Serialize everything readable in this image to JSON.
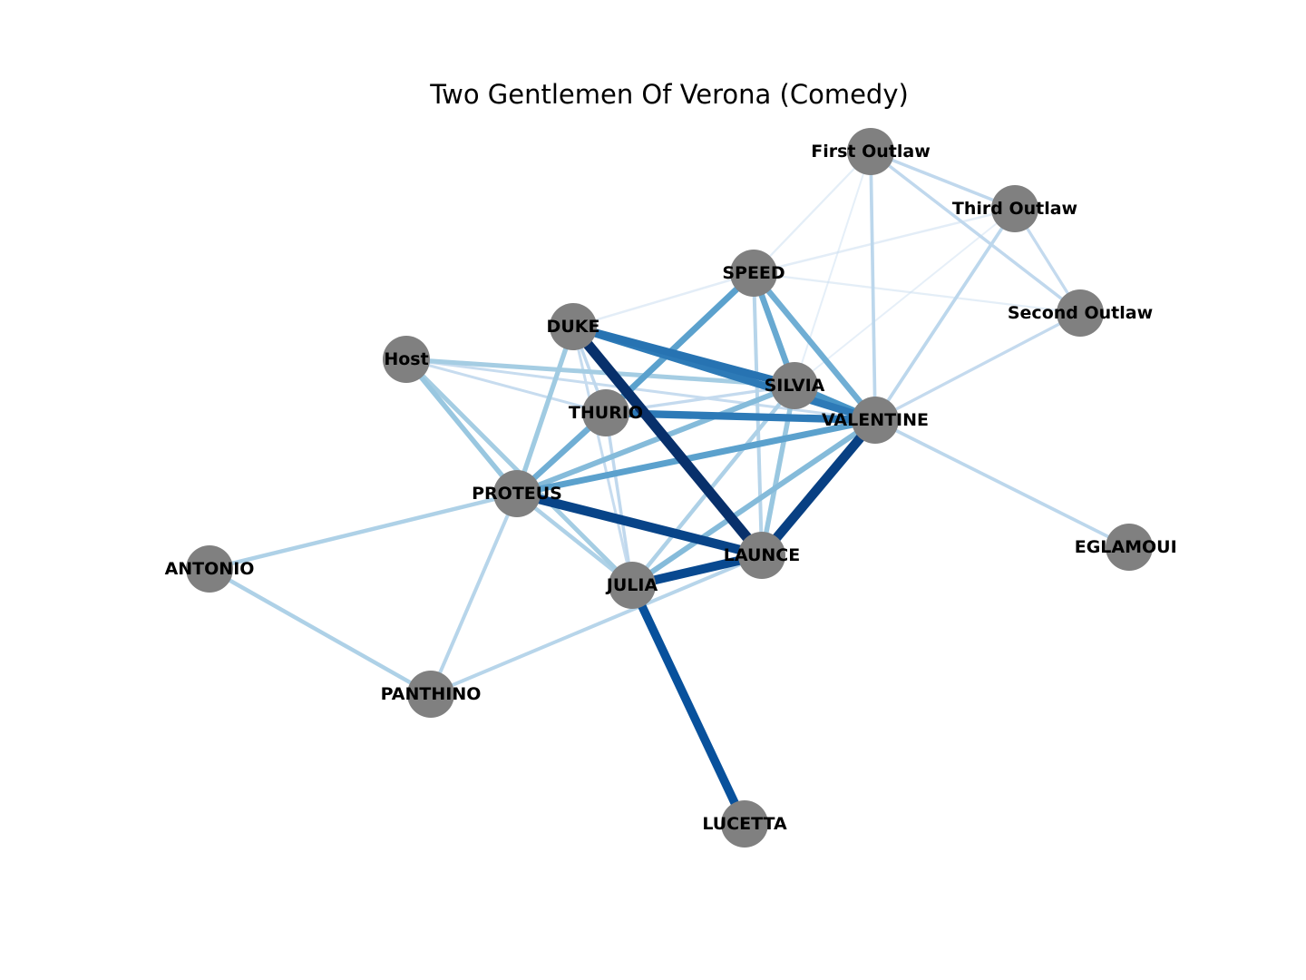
{
  "title": "Two Gentlemen Of Verona (Comedy)",
  "colors": {
    "node": "#808080",
    "background": "#ffffff",
    "edge_colormap": "Blues"
  },
  "nodes": [
    {
      "id": "First Outlaw",
      "label": "First Outlaw"
    },
    {
      "id": "Third Outlaw",
      "label": "Third Outlaw"
    },
    {
      "id": "SPEED",
      "label": "SPEED"
    },
    {
      "id": "Second Outlaw",
      "label": "Second Outlaw"
    },
    {
      "id": "DUKE",
      "label": "DUKE"
    },
    {
      "id": "Host",
      "label": "Host"
    },
    {
      "id": "SILVIA",
      "label": "SILVIA"
    },
    {
      "id": "THURIO",
      "label": "THURIO"
    },
    {
      "id": "VALENTINE",
      "label": "VALENTINE"
    },
    {
      "id": "PROTEUS",
      "label": "PROTEUS"
    },
    {
      "id": "EGLAMOUR",
      "label": "EGLAMOUR"
    },
    {
      "id": "ANTONIO",
      "label": "ANTONIO"
    },
    {
      "id": "LAUNCE",
      "label": "LAUNCE"
    },
    {
      "id": "JULIA",
      "label": "JULIA"
    },
    {
      "id": "PANTHINO",
      "label": "PANTHINO"
    },
    {
      "id": "LUCETTA",
      "label": "LUCETTA"
    }
  ],
  "edges": [
    {
      "source": "First Outlaw",
      "target": "Third Outlaw",
      "weight": 0.2
    },
    {
      "source": "First Outlaw",
      "target": "Second Outlaw",
      "weight": 0.2
    },
    {
      "source": "First Outlaw",
      "target": "VALENTINE",
      "weight": 0.22
    },
    {
      "source": "First Outlaw",
      "target": "SPEED",
      "weight": 0.08
    },
    {
      "source": "First Outlaw",
      "target": "SILVIA",
      "weight": 0.05
    },
    {
      "source": "Third Outlaw",
      "target": "Second Outlaw",
      "weight": 0.18
    },
    {
      "source": "Third Outlaw",
      "target": "VALENTINE",
      "weight": 0.22
    },
    {
      "source": "Third Outlaw",
      "target": "SPEED",
      "weight": 0.1
    },
    {
      "source": "Third Outlaw",
      "target": "SILVIA",
      "weight": 0.04
    },
    {
      "source": "Second Outlaw",
      "target": "VALENTINE",
      "weight": 0.18
    },
    {
      "source": "Second Outlaw",
      "target": "SPEED",
      "weight": 0.08
    },
    {
      "source": "SPEED",
      "target": "VALENTINE",
      "weight": 0.5
    },
    {
      "source": "SPEED",
      "target": "SILVIA",
      "weight": 0.52
    },
    {
      "source": "SPEED",
      "target": "THURIO",
      "weight": 0.55
    },
    {
      "source": "SPEED",
      "target": "LAUNCE",
      "weight": 0.25
    },
    {
      "source": "SPEED",
      "target": "PROTEUS",
      "weight": 0.3
    },
    {
      "source": "SPEED",
      "target": "DUKE",
      "weight": 0.1
    },
    {
      "source": "DUKE",
      "target": "LAUNCE",
      "weight": 1.0
    },
    {
      "source": "DUKE",
      "target": "SILVIA",
      "weight": 0.7
    },
    {
      "source": "DUKE",
      "target": "VALENTINE",
      "weight": 0.68
    },
    {
      "source": "DUKE",
      "target": "PROTEUS",
      "weight": 0.38
    },
    {
      "source": "DUKE",
      "target": "JULIA",
      "weight": 0.15
    },
    {
      "source": "DUKE",
      "target": "THURIO",
      "weight": 0.2
    },
    {
      "source": "Host",
      "target": "SILVIA",
      "weight": 0.35
    },
    {
      "source": "Host",
      "target": "PROTEUS",
      "weight": 0.4
    },
    {
      "source": "Host",
      "target": "JULIA",
      "weight": 0.35
    },
    {
      "source": "Host",
      "target": "THURIO",
      "weight": 0.15
    },
    {
      "source": "Host",
      "target": "VALENTINE",
      "weight": 0.15
    },
    {
      "source": "SILVIA",
      "target": "VALENTINE",
      "weight": 0.6
    },
    {
      "source": "SILVIA",
      "target": "PROTEUS",
      "weight": 0.45
    },
    {
      "source": "SILVIA",
      "target": "JULIA",
      "weight": 0.3
    },
    {
      "source": "SILVIA",
      "target": "LAUNCE",
      "weight": 0.4
    },
    {
      "source": "SILVIA",
      "target": "THURIO",
      "weight": 0.18
    },
    {
      "source": "THURIO",
      "target": "VALENTINE",
      "weight": 0.68
    },
    {
      "source": "THURIO",
      "target": "PROTEUS",
      "weight": 0.5
    },
    {
      "source": "THURIO",
      "target": "JULIA",
      "weight": 0.2
    },
    {
      "source": "VALENTINE",
      "target": "PROTEUS",
      "weight": 0.55
    },
    {
      "source": "VALENTINE",
      "target": "LAUNCE",
      "weight": 0.9
    },
    {
      "source": "VALENTINE",
      "target": "JULIA",
      "weight": 0.45
    },
    {
      "source": "VALENTINE",
      "target": "EGLAMOUR",
      "weight": 0.22
    },
    {
      "source": "PROTEUS",
      "target": "LAUNCE",
      "weight": 0.88
    },
    {
      "source": "PROTEUS",
      "target": "ANTONIO",
      "weight": 0.3
    },
    {
      "source": "PROTEUS",
      "target": "PANTHINO",
      "weight": 0.25
    },
    {
      "source": "PROTEUS",
      "target": "JULIA",
      "weight": 0.3
    },
    {
      "source": "ANTONIO",
      "target": "PANTHINO",
      "weight": 0.3
    },
    {
      "source": "LAUNCE",
      "target": "JULIA",
      "weight": 0.85
    },
    {
      "source": "LAUNCE",
      "target": "PANTHINO",
      "weight": 0.25
    },
    {
      "source": "JULIA",
      "target": "LUCETTA",
      "weight": 0.8
    }
  ]
}
